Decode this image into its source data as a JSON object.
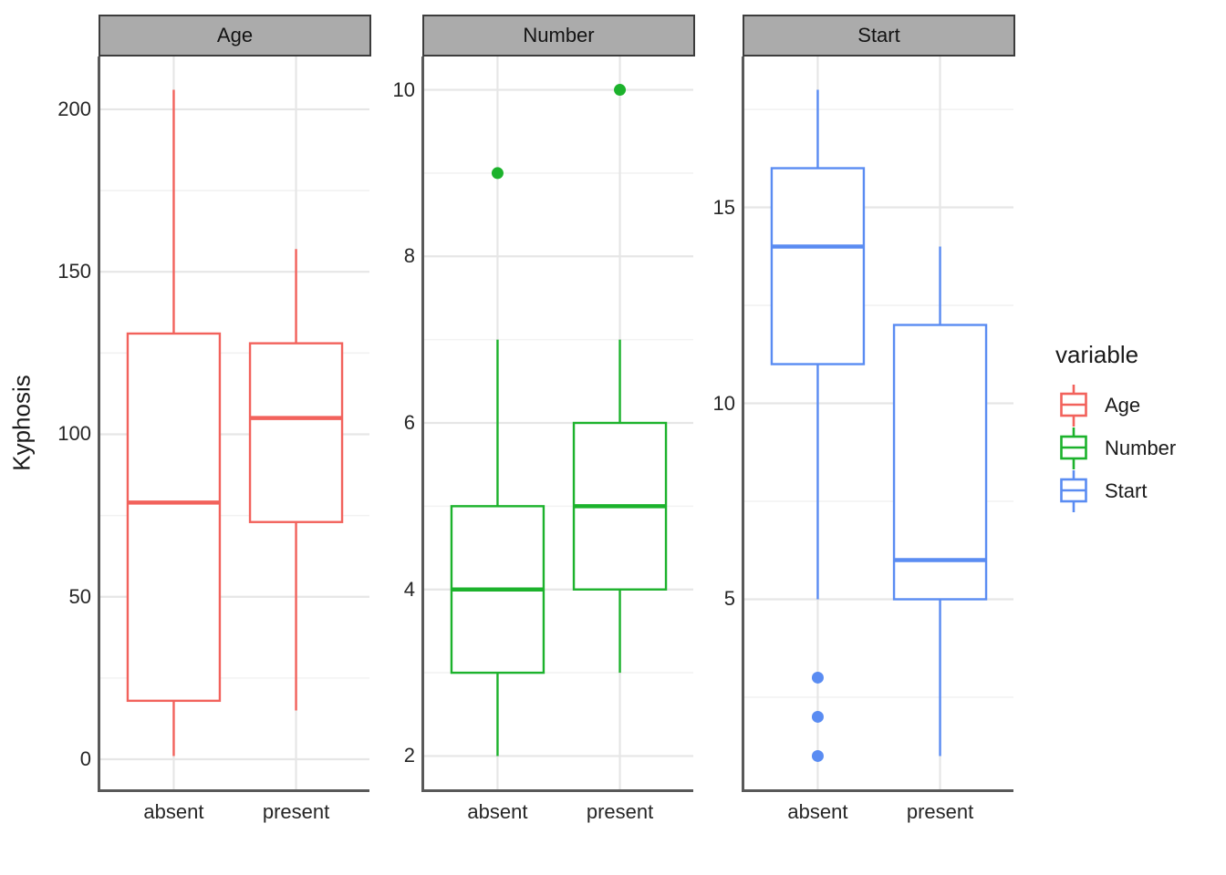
{
  "chart_data": {
    "type": "boxplot",
    "title": "",
    "ylabel": "Kyphosis",
    "xlabel": "",
    "categories": [
      "absent",
      "present"
    ],
    "grid": "on",
    "legend": {
      "title": "variable",
      "position": "right",
      "entries": [
        "Age",
        "Number",
        "Start"
      ]
    },
    "colors": {
      "Age": "#F2625C",
      "Number": "#1CB22C",
      "Start": "#5A8CF2"
    },
    "style": {
      "strip_fill": "#ABABAB",
      "strip_border": "#3C3C3C",
      "strip_text": "#141414",
      "axis_line": "#595959",
      "grid_major": "#E6E6E6",
      "grid_minor": "#F2F2F2",
      "box_fill": "#FFFFFF",
      "text": "#262626"
    },
    "facets": [
      {
        "label": "Age",
        "ylim": [
          -9.25,
          216.25
        ],
        "major_ticks": [
          0,
          50,
          100,
          150,
          200
        ],
        "major_tick_labels": [
          "0",
          "50",
          "100",
          "150",
          "200"
        ],
        "minor_ticks": [
          25,
          75,
          125,
          175
        ],
        "boxes": [
          {
            "category": "absent",
            "whisker_low": 1,
            "q1": 18,
            "median": 79,
            "q3": 131,
            "whisker_high": 206,
            "outliers": []
          },
          {
            "category": "present",
            "whisker_low": 15,
            "q1": 73,
            "median": 105,
            "q3": 128,
            "whisker_high": 157,
            "outliers": []
          }
        ]
      },
      {
        "label": "Number",
        "ylim": [
          1.6,
          10.4
        ],
        "major_ticks": [
          2,
          4,
          6,
          8,
          10
        ],
        "major_tick_labels": [
          "2",
          "4",
          "6",
          "8",
          "10"
        ],
        "minor_ticks": [
          3,
          5,
          7,
          9
        ],
        "boxes": [
          {
            "category": "absent",
            "whisker_low": 2,
            "q1": 3,
            "median": 4,
            "q3": 5,
            "whisker_high": 7,
            "outliers": [
              9
            ]
          },
          {
            "category": "present",
            "whisker_low": 3,
            "q1": 4,
            "median": 5,
            "q3": 6,
            "whisker_high": 7,
            "outliers": [
              10
            ]
          }
        ]
      },
      {
        "label": "Start",
        "ylim": [
          0.15,
          18.85
        ],
        "major_ticks": [
          5,
          10,
          15
        ],
        "major_tick_labels": [
          "5",
          "10",
          "15"
        ],
        "minor_ticks": [
          2.5,
          7.5,
          12.5,
          17.5
        ],
        "boxes": [
          {
            "category": "absent",
            "whisker_low": 5,
            "q1": 11,
            "median": 14,
            "q3": 16,
            "whisker_high": 18,
            "outliers": [
              3,
              2,
              1
            ]
          },
          {
            "category": "present",
            "whisker_low": 1,
            "q1": 5,
            "median": 6,
            "q3": 12,
            "whisker_high": 14,
            "outliers": []
          }
        ]
      }
    ]
  }
}
